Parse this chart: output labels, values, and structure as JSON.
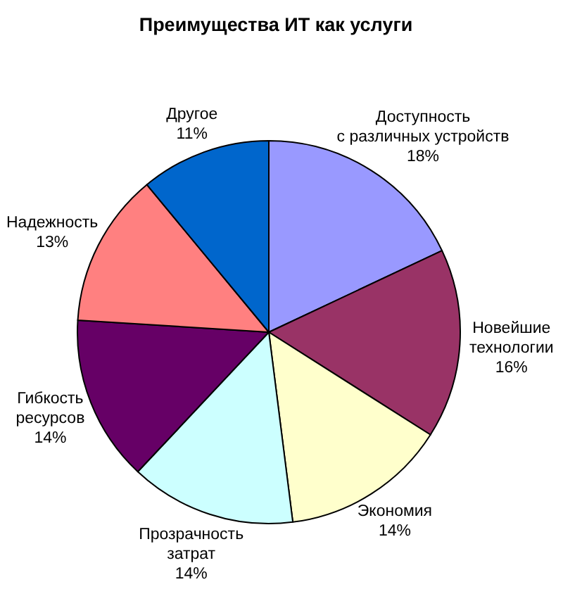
{
  "chart_data": {
    "type": "pie",
    "title": "Преимущества ИТ как услуги",
    "categories": [
      "Доступность\nс различных устройств",
      "Новейшие\nтехнологии",
      "Экономия",
      "Прозрачность\nзатрат",
      "Гибкость\nресурсов",
      "Надежность",
      "Другое"
    ],
    "values": [
      18,
      16,
      14,
      14,
      14,
      13,
      11
    ],
    "colors": [
      "#9999ff",
      "#993366",
      "#ffffcc",
      "#ccffff",
      "#660066",
      "#ff8080",
      "#0066cc"
    ],
    "value_labels": [
      "18%",
      "16%",
      "14%",
      "14%",
      "14%",
      "13%",
      "11%"
    ]
  }
}
